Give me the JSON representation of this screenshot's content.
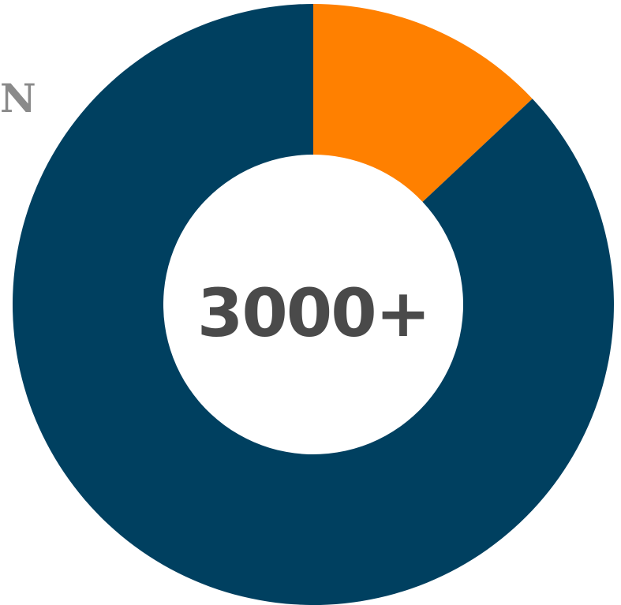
{
  "edge_text": "N",
  "chart_data": {
    "type": "pie",
    "variant": "donut",
    "center_label": "3000+",
    "categories": [
      "",
      ""
    ],
    "values": [
      13,
      87
    ],
    "colors": [
      "#ff8000",
      "#004060"
    ],
    "title": "",
    "legend": "none"
  },
  "colors": {
    "center_text": "#4a4a4a",
    "edge_text": "#8a8a8a",
    "background": "#ffffff"
  }
}
